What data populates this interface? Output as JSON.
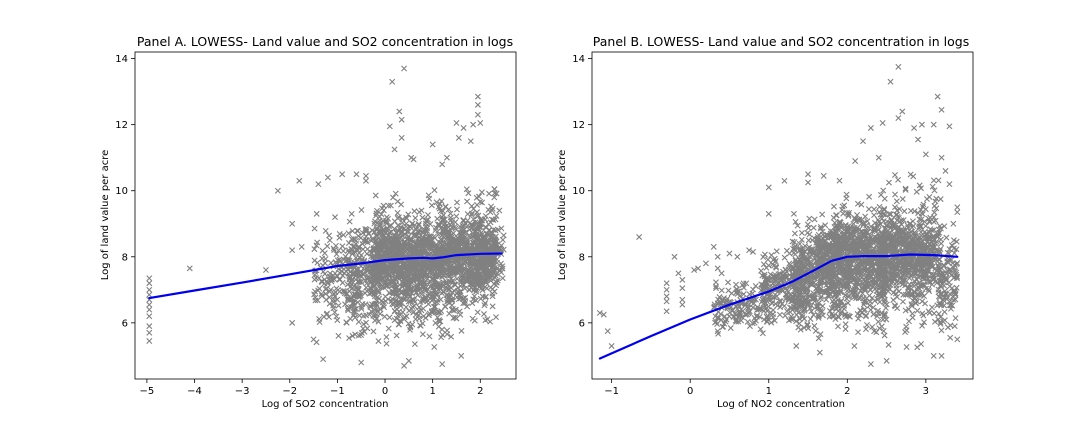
{
  "chart_data": [
    {
      "type": "scatter",
      "title": "Panel A. LOWESS- Land value and SO2 concentration in logs",
      "xlabel": "Log of SO2 concentration",
      "ylabel": "Log of land value per acre",
      "xlim": [
        -5.25,
        2.75
      ],
      "ylim": [
        4.3,
        14.2
      ],
      "xticks": [
        -5,
        -4,
        -3,
        -2,
        -1,
        0,
        1,
        2
      ],
      "yticks": [
        6,
        8,
        10,
        12,
        14
      ],
      "scatter_color": "#808080",
      "line_color": "#0000ee",
      "seed": 11,
      "scatter_points": [
        [
          -4.95,
          7.35
        ],
        [
          -4.95,
          7.2
        ],
        [
          -4.95,
          7.0
        ],
        [
          -4.95,
          6.85
        ],
        [
          -4.95,
          6.7
        ],
        [
          -4.95,
          6.55
        ],
        [
          -4.95,
          6.4
        ],
        [
          -4.95,
          6.2
        ],
        [
          -4.95,
          5.9
        ],
        [
          -4.95,
          5.7
        ],
        [
          -4.95,
          5.45
        ],
        [
          -4.1,
          7.65
        ],
        [
          -2.5,
          7.6
        ],
        [
          -2.25,
          10.0
        ],
        [
          -1.95,
          9.0
        ],
        [
          -1.95,
          8.2
        ],
        [
          -1.95,
          6.0
        ],
        [
          -1.8,
          10.3
        ],
        [
          -1.75,
          8.3
        ],
        [
          -1.4,
          10.2
        ],
        [
          -1.2,
          10.4
        ],
        [
          -1.05,
          9.2
        ],
        [
          -0.9,
          10.5
        ],
        [
          -0.6,
          10.5
        ],
        [
          -0.4,
          10.45
        ],
        [
          -0.4,
          10.3
        ],
        [
          -0.7,
          9.3
        ],
        [
          -0.5,
          4.8
        ],
        [
          0.1,
          11.95
        ],
        [
          0.15,
          13.3
        ],
        [
          0.4,
          13.7
        ],
        [
          0.3,
          12.4
        ],
        [
          0.35,
          12.15
        ],
        [
          0.55,
          11.0
        ],
        [
          0.35,
          11.6
        ],
        [
          0.2,
          11.25
        ],
        [
          0.6,
          10.95
        ],
        [
          1.0,
          11.4
        ],
        [
          1.5,
          12.05
        ],
        [
          1.55,
          11.6
        ],
        [
          1.65,
          11.9
        ],
        [
          1.8,
          11.5
        ],
        [
          1.95,
          12.85
        ],
        [
          1.95,
          12.6
        ],
        [
          1.95,
          12.3
        ],
        [
          2.0,
          12.05
        ],
        [
          1.85,
          12.0
        ],
        [
          1.3,
          11.0
        ],
        [
          1.2,
          10.8
        ],
        [
          2.3,
          10.05
        ],
        [
          2.4,
          9.4
        ],
        [
          0.4,
          4.7
        ],
        [
          0.5,
          4.85
        ],
        [
          1.2,
          4.75
        ],
        [
          1.6,
          5.0
        ],
        [
          2.3,
          6.95
        ],
        [
          -1.3,
          4.9
        ],
        [
          -1.5,
          5.5
        ]
      ],
      "clusters": [
        {
          "x": [
            -1.5,
            -0.6
          ],
          "y": [
            5.2,
            9.4
          ],
          "n": 160
        },
        {
          "x": [
            -0.8,
            -0.2
          ],
          "y": [
            5.0,
            9.8
          ],
          "n": 200
        },
        {
          "x": [
            -0.2,
            0.5
          ],
          "y": [
            4.9,
            10.3
          ],
          "n": 360
        },
        {
          "x": [
            0.5,
            1.4
          ],
          "y": [
            5.0,
            10.4
          ],
          "n": 420
        },
        {
          "x": [
            1.4,
            2.35
          ],
          "y": [
            5.3,
            10.6
          ],
          "n": 380
        },
        {
          "x": [
            2.0,
            2.5
          ],
          "y": [
            6.9,
            9.3
          ],
          "n": 90
        },
        {
          "x": [
            -0.3,
            2.2
          ],
          "y": [
            6.5,
            9.4
          ],
          "n": 900
        }
      ],
      "lowess": {
        "x": [
          -4.95,
          -4.0,
          -3.0,
          -2.0,
          -1.0,
          -0.5,
          0.0,
          0.5,
          0.8,
          1.0,
          1.2,
          1.5,
          2.0,
          2.45
        ],
        "y": [
          6.75,
          6.98,
          7.22,
          7.47,
          7.72,
          7.8,
          7.9,
          7.95,
          7.97,
          7.95,
          7.98,
          8.05,
          8.09,
          8.1
        ]
      }
    },
    {
      "type": "scatter",
      "title": "Panel B. LOWESS- Land value and SO2 concentration in logs",
      "xlabel": "Log of NO2 concentration",
      "ylabel": "Log of land value per acre",
      "xlim": [
        -1.25,
        3.6
      ],
      "ylim": [
        4.3,
        14.2
      ],
      "xticks": [
        -1,
        0,
        1,
        2,
        3
      ],
      "yticks": [
        6,
        8,
        10,
        12,
        14
      ],
      "scatter_color": "#808080",
      "line_color": "#0000ee",
      "seed": 23,
      "scatter_points": [
        [
          -1.15,
          6.3
        ],
        [
          -1.1,
          6.25
        ],
        [
          -1.05,
          5.75
        ],
        [
          -1.0,
          5.3
        ],
        [
          -0.65,
          8.6
        ],
        [
          -0.3,
          7.2
        ],
        [
          -0.3,
          7.0
        ],
        [
          -0.3,
          6.8
        ],
        [
          -0.3,
          6.65
        ],
        [
          -0.3,
          6.35
        ],
        [
          -0.2,
          8.0
        ],
        [
          -0.15,
          7.5
        ],
        [
          -0.1,
          7.3
        ],
        [
          -0.1,
          7.05
        ],
        [
          -0.1,
          6.7
        ],
        [
          -0.1,
          6.55
        ],
        [
          0.05,
          7.6
        ],
        [
          0.1,
          7.65
        ],
        [
          0.2,
          7.8
        ],
        [
          0.3,
          8.3
        ],
        [
          0.35,
          8.0
        ],
        [
          0.35,
          7.65
        ],
        [
          0.4,
          7.5
        ],
        [
          0.5,
          8.1
        ],
        [
          0.6,
          8.0
        ],
        [
          0.75,
          8.2
        ],
        [
          0.8,
          8.15
        ],
        [
          1.0,
          10.1
        ],
        [
          1.0,
          9.3
        ],
        [
          1.2,
          10.3
        ],
        [
          1.5,
          10.5
        ],
        [
          1.5,
          10.25
        ],
        [
          1.7,
          10.45
        ],
        [
          2.1,
          10.9
        ],
        [
          2.2,
          11.5
        ],
        [
          2.3,
          11.9
        ],
        [
          2.4,
          11.0
        ],
        [
          2.45,
          12.05
        ],
        [
          2.55,
          13.3
        ],
        [
          2.65,
          13.75
        ],
        [
          2.7,
          12.4
        ],
        [
          2.65,
          12.2
        ],
        [
          2.85,
          11.9
        ],
        [
          2.9,
          11.55
        ],
        [
          2.95,
          12.0
        ],
        [
          3.0,
          11.1
        ],
        [
          3.1,
          12.0
        ],
        [
          3.15,
          12.85
        ],
        [
          3.2,
          12.45
        ],
        [
          3.3,
          11.95
        ],
        [
          3.2,
          11.0
        ],
        [
          3.25,
          10.6
        ],
        [
          3.3,
          10.2
        ],
        [
          3.4,
          9.5
        ],
        [
          3.4,
          9.35
        ],
        [
          3.35,
          9.0
        ],
        [
          2.3,
          4.75
        ],
        [
          2.5,
          4.85
        ],
        [
          3.1,
          5.0
        ],
        [
          3.2,
          5.0
        ],
        [
          3.4,
          5.5
        ],
        [
          1.65,
          5.1
        ],
        [
          1.35,
          5.3
        ]
      ],
      "clusters": [
        {
          "x": [
            0.3,
            1.0
          ],
          "y": [
            5.4,
            7.6
          ],
          "n": 150
        },
        {
          "x": [
            0.9,
            1.5
          ],
          "y": [
            5.6,
            8.6
          ],
          "n": 260
        },
        {
          "x": [
            1.3,
            1.9
          ],
          "y": [
            5.3,
            9.6
          ],
          "n": 380
        },
        {
          "x": [
            1.8,
            2.5
          ],
          "y": [
            4.9,
            10.6
          ],
          "n": 480
        },
        {
          "x": [
            2.4,
            3.2
          ],
          "y": [
            5.1,
            10.9
          ],
          "n": 460
        },
        {
          "x": [
            3.15,
            3.4
          ],
          "y": [
            5.3,
            9.5
          ],
          "n": 110
        },
        {
          "x": [
            1.6,
            3.1
          ],
          "y": [
            6.7,
            9.5
          ],
          "n": 800
        }
      ],
      "lowess": {
        "x": [
          -1.15,
          -0.5,
          0.0,
          0.5,
          1.0,
          1.3,
          1.6,
          1.8,
          2.0,
          2.2,
          2.5,
          2.8,
          3.1,
          3.4
        ],
        "y": [
          4.92,
          5.6,
          6.1,
          6.55,
          6.95,
          7.25,
          7.62,
          7.88,
          8.0,
          8.02,
          8.02,
          8.07,
          8.05,
          8.0
        ]
      }
    }
  ]
}
